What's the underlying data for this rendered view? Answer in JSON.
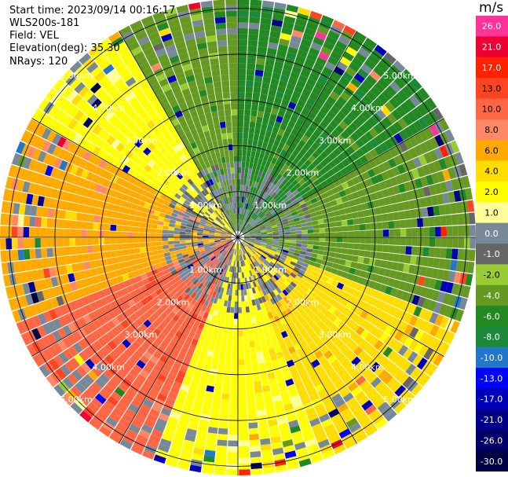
{
  "header": {
    "start_time": "Start time: 2023/09/14 00:16:17",
    "instrument": "WLS200s-181",
    "field": "Field: VEL",
    "elevation": "Elevation(deg): 35.30",
    "nrays": "NRays: 120"
  },
  "colorbar": {
    "unit": "m/s",
    "levels": [
      {
        "label": "26.0",
        "color": "#ff3399"
      },
      {
        "label": "21.0",
        "color": "#ee0033"
      },
      {
        "label": "17.0",
        "color": "#ff2200"
      },
      {
        "label": "13.0",
        "color": "#ff4422"
      },
      {
        "label": "10.0",
        "color": "#ff6644"
      },
      {
        "label": "8.0",
        "color": "#ff8866"
      },
      {
        "label": "6.0",
        "color": "#ffaa00"
      },
      {
        "label": "4.0",
        "color": "#ffdd00"
      },
      {
        "label": "2.0",
        "color": "#ffff00"
      },
      {
        "label": "1.0",
        "color": "#ffff99"
      },
      {
        "label": "0.0",
        "color": "#778899"
      },
      {
        "label": "-1.0",
        "color": "#666666"
      },
      {
        "label": "-2.0",
        "color": "#99cc33"
      },
      {
        "label": "-4.0",
        "color": "#669922"
      },
      {
        "label": "-6.0",
        "color": "#228822"
      },
      {
        "label": "-8.0",
        "color": "#1a8a3a"
      },
      {
        "label": "-10.0",
        "color": "#2277cc"
      },
      {
        "label": "-13.0",
        "color": "#0000ff"
      },
      {
        "label": "-17.0",
        "color": "#0000bb"
      },
      {
        "label": "-21.0",
        "color": "#000088"
      },
      {
        "label": "-26.0",
        "color": "#000066"
      },
      {
        "label": "-30.0",
        "color": "#000044"
      }
    ]
  },
  "chart_data": {
    "type": "heatmap",
    "projection": "polar PPI",
    "field": "VEL",
    "nrays": 120,
    "ring_labels": [
      "1.00km",
      "2.00km",
      "3.00km",
      "4.00km",
      "5.00km"
    ],
    "ring_ranges_km": [
      1,
      2,
      3,
      4,
      5
    ],
    "max_range_km": 5.2,
    "sector_velocity_pattern_deg": [
      {
        "from": 0,
        "to": 60,
        "dominant": "-6.0"
      },
      {
        "from": 60,
        "to": 110,
        "dominant": "-4.0"
      },
      {
        "from": 110,
        "to": 160,
        "dominant": "4.0"
      },
      {
        "from": 160,
        "to": 200,
        "dominant": "2.0"
      },
      {
        "from": 200,
        "to": 250,
        "dominant": "10.0"
      },
      {
        "from": 250,
        "to": 300,
        "dominant": "6.0"
      },
      {
        "from": 300,
        "to": 330,
        "dominant": "2.0"
      },
      {
        "from": 330,
        "to": 360,
        "dominant": "-4.0"
      }
    ]
  }
}
